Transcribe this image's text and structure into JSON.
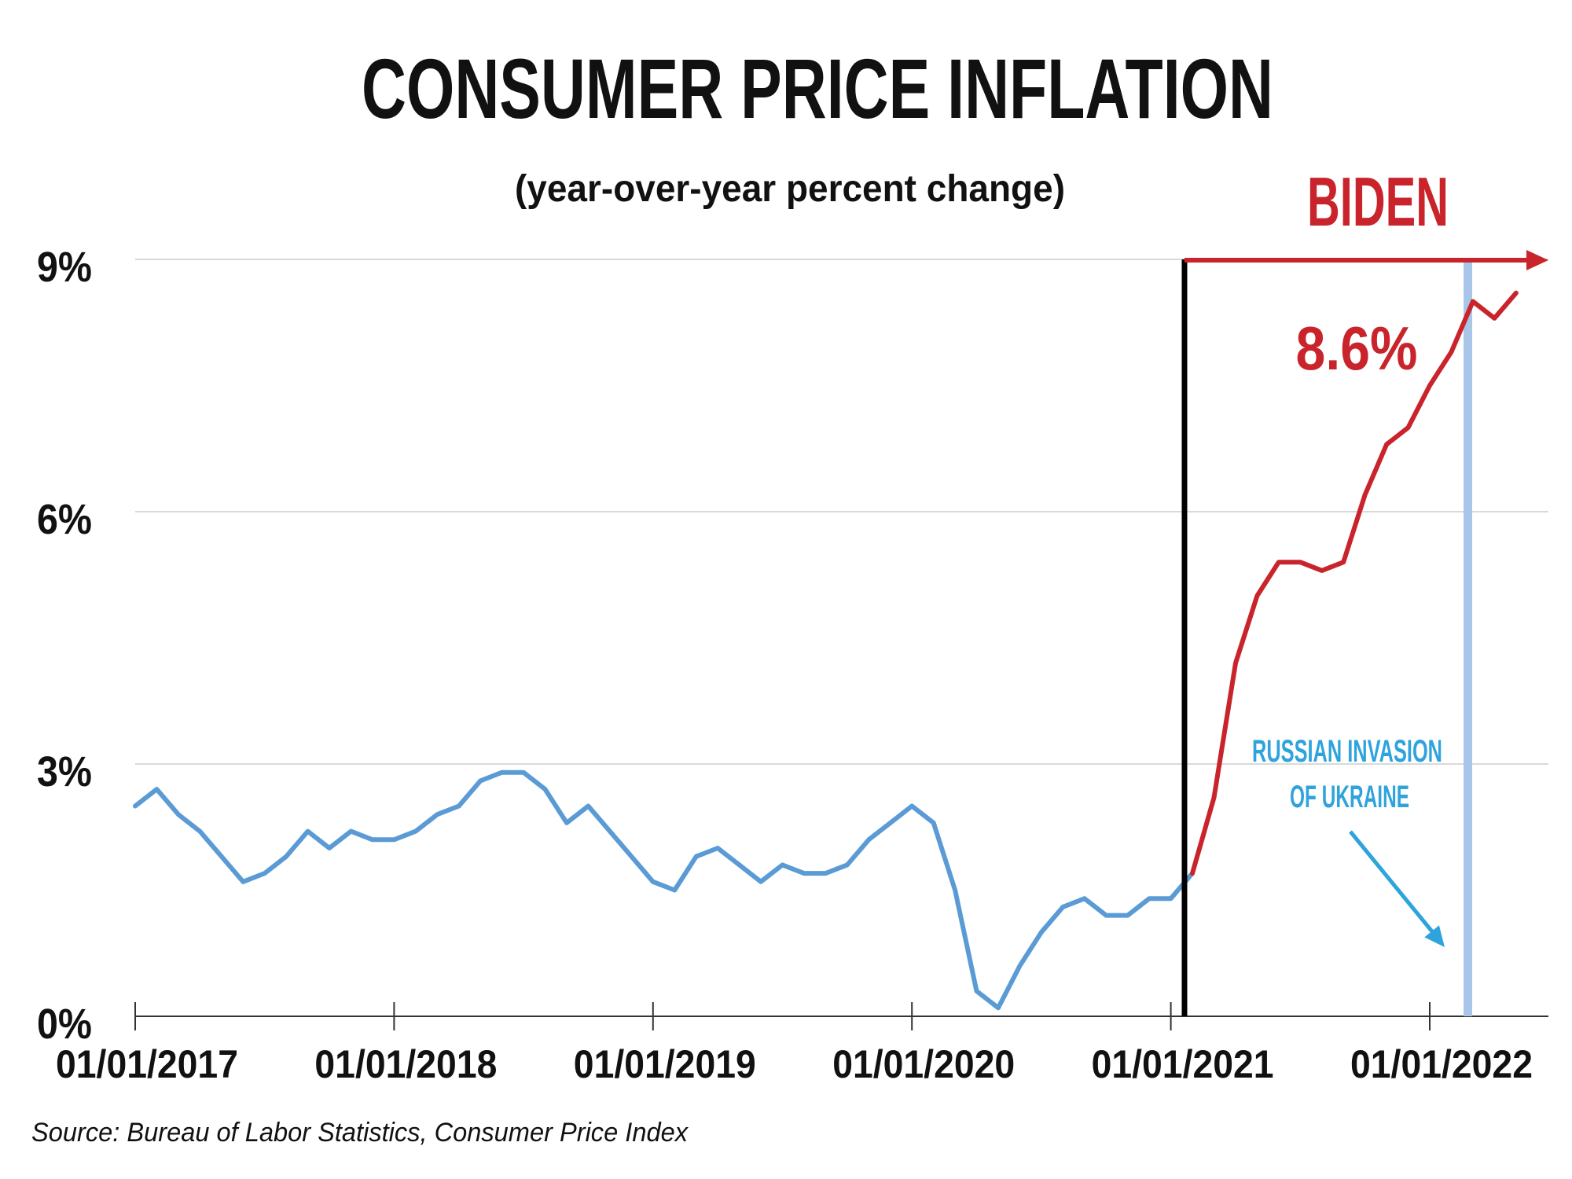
{
  "chart_data": {
    "type": "line",
    "title": "CONSUMER PRICE INFLATION",
    "subtitle": "(year-over-year percent change)",
    "ylabel": "",
    "xlabel": "",
    "ylim": [
      0,
      9
    ],
    "xlim": [
      "2017-01",
      "2022-05"
    ],
    "yticks": [
      {
        "value": 0,
        "label": "0%"
      },
      {
        "value": 3,
        "label": "3%"
      },
      {
        "value": 6,
        "label": "6%"
      },
      {
        "value": 9,
        "label": "9%"
      }
    ],
    "xticks": [
      {
        "value": "2017-01",
        "label": "01/01/2017"
      },
      {
        "value": "2018-01",
        "label": "01/01/2018"
      },
      {
        "value": "2019-01",
        "label": "01/01/2019"
      },
      {
        "value": "2020-01",
        "label": "01/01/2020"
      },
      {
        "value": "2021-01",
        "label": "01/01/2021"
      },
      {
        "value": "2022-01",
        "label": "01/01/2022"
      }
    ],
    "grid": true,
    "series": [
      {
        "color": "#5b9bd5",
        "x": [
          "2017-01",
          "2017-02",
          "2017-03",
          "2017-04",
          "2017-05",
          "2017-06",
          "2017-07",
          "2017-08",
          "2017-09",
          "2017-10",
          "2017-11",
          "2017-12",
          "2018-01",
          "2018-02",
          "2018-03",
          "2018-04",
          "2018-05",
          "2018-06",
          "2018-07",
          "2018-08",
          "2018-09",
          "2018-10",
          "2018-11",
          "2018-12",
          "2019-01",
          "2019-02",
          "2019-03",
          "2019-04",
          "2019-05",
          "2019-06",
          "2019-07",
          "2019-08",
          "2019-09",
          "2019-10",
          "2019-11",
          "2019-12",
          "2020-01",
          "2020-02",
          "2020-03",
          "2020-04",
          "2020-05",
          "2020-06",
          "2020-07",
          "2020-08",
          "2020-09",
          "2020-10",
          "2020-11",
          "2020-12",
          "2021-01",
          "2021-02"
        ],
        "values": [
          2.5,
          2.7,
          2.4,
          2.2,
          1.9,
          1.6,
          1.7,
          1.9,
          2.2,
          2.0,
          2.2,
          2.1,
          2.1,
          2.2,
          2.4,
          2.5,
          2.8,
          2.9,
          2.9,
          2.7,
          2.3,
          2.5,
          2.2,
          1.9,
          1.6,
          1.5,
          1.9,
          2.0,
          1.8,
          1.6,
          1.8,
          1.7,
          1.7,
          1.8,
          2.1,
          2.3,
          2.5,
          2.3,
          1.5,
          0.3,
          0.1,
          0.6,
          1.0,
          1.3,
          1.4,
          1.2,
          1.2,
          1.4,
          1.4,
          1.7
        ]
      },
      {
        "color": "#c9242b",
        "x": [
          "2021-02",
          "2021-03",
          "2021-04",
          "2021-05",
          "2021-06",
          "2021-07",
          "2021-08",
          "2021-09",
          "2021-10",
          "2021-11",
          "2021-12",
          "2022-01",
          "2022-02",
          "2022-03",
          "2022-04",
          "2022-05"
        ],
        "values": [
          1.7,
          2.6,
          4.2,
          5.0,
          5.4,
          5.4,
          5.3,
          5.4,
          6.2,
          6.8,
          7.0,
          7.5,
          7.9,
          8.5,
          8.3,
          8.6
        ]
      }
    ],
    "annotations": {
      "biden_label": "BIDEN",
      "biden_start": "2021-01-20",
      "value_label": "8.6%",
      "invasion_label_line1": "RUSSIAN INVASION",
      "invasion_label_line2": "OF UKRAINE",
      "invasion_date": "2022-02-24"
    },
    "source": "Source: Bureau of Labor Statistics, Consumer Price Index"
  },
  "colors": {
    "blue_line": "#5b9bd5",
    "red_line": "#c9242b",
    "invasion_band": "#a9c6e8",
    "invasion_text": "#2ea3dc",
    "grid": "#d9d9d9",
    "text": "#111111"
  }
}
